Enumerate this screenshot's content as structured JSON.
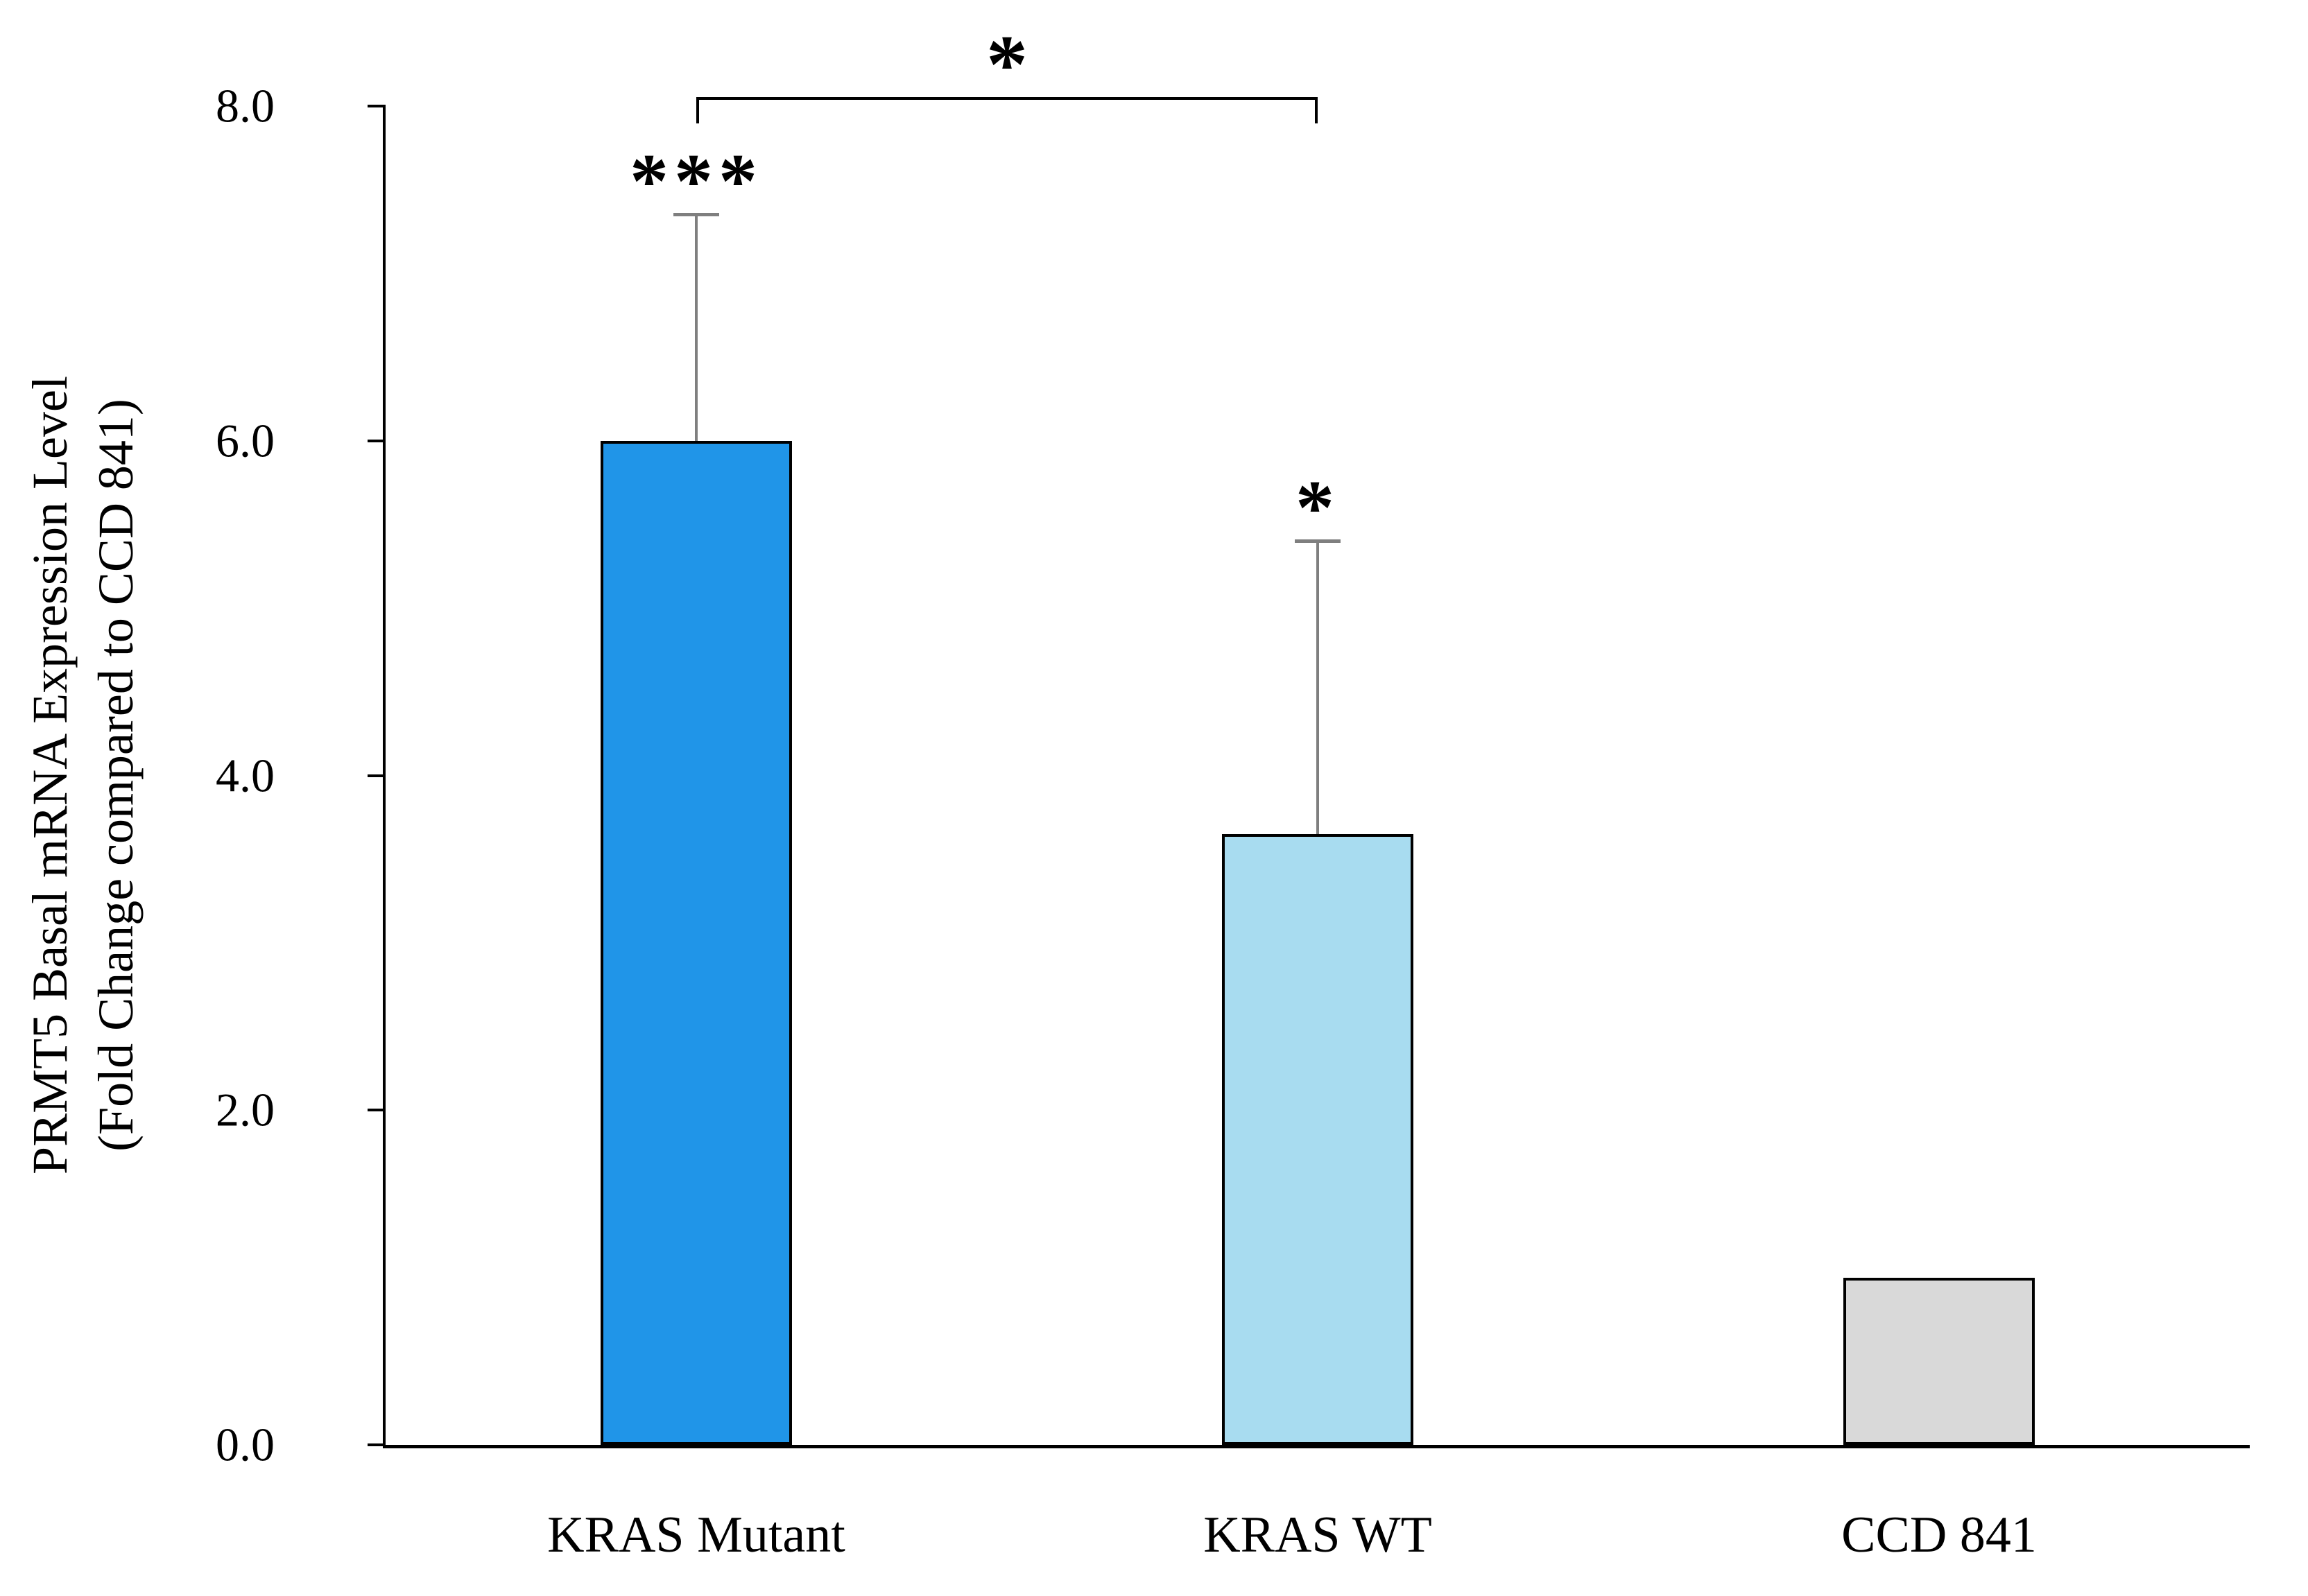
{
  "figure": {
    "background": "#FFFFFF"
  },
  "chart_data": {
    "type": "bar",
    "title": "",
    "categories": [
      "KRAS Mutant",
      "KRAS WT",
      "CCD 841"
    ],
    "values": [
      6.0,
      3.65,
      1.0
    ],
    "errors_plus": [
      1.35,
      1.75,
      0
    ],
    "bar_annotations": [
      "***",
      "*",
      ""
    ],
    "bar_colors": [
      "#2095E8",
      "#A8DCF0",
      "#D9D9D9"
    ],
    "bar_edge_color": "#000000",
    "error_bar_color": "#7F7F7F",
    "ylabel_lines": [
      "PRMT5 Basal mRNA Expression Level",
      "(Fold Change compared to CCD 841)"
    ],
    "xlabel": "",
    "ylim": [
      0,
      8
    ],
    "yticks": [
      0,
      2,
      4,
      6,
      8
    ],
    "ytick_labels": [
      "0.0",
      "2.0",
      "4.0",
      "6.0",
      "8.0"
    ],
    "grid": false,
    "legend": false,
    "significance_bracket": {
      "between": [
        "KRAS Mutant",
        "KRAS WT"
      ],
      "label": "*"
    }
  }
}
